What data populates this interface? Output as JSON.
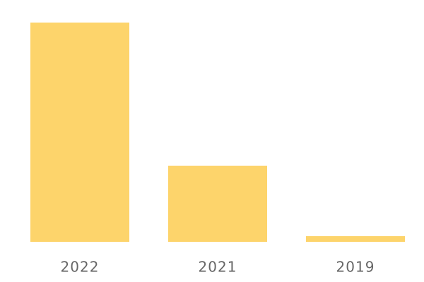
{
  "chart_data": {
    "type": "bar",
    "categories": [
      "2022",
      "2021",
      "2019"
    ],
    "values": [
      311,
      108,
      8
    ],
    "color": "#fdd46b"
  }
}
